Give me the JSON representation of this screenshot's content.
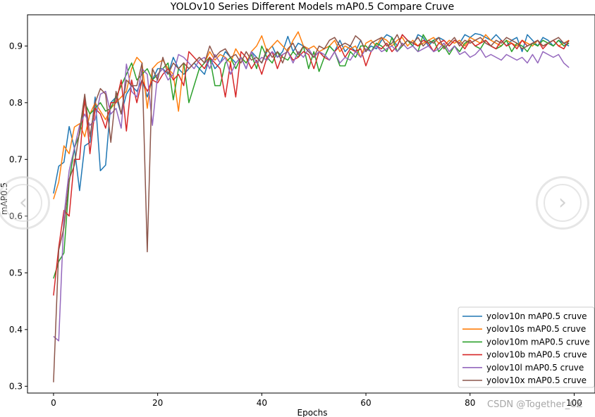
{
  "chart_data": {
    "type": "line",
    "title": "YOLOv10 Series Different Models mAP0.5 Compare Cruve",
    "xlabel": "Epochs",
    "ylabel": "mAP0.5",
    "xlim": [
      -5,
      104
    ],
    "ylim": [
      0.288,
      0.955
    ],
    "xticks": [
      0,
      20,
      40,
      60,
      80,
      100
    ],
    "yticks": [
      0.3,
      0.4,
      0.5,
      0.6,
      0.7,
      0.8,
      0.9
    ],
    "grid": false,
    "legend_position": "lower-right",
    "series": [
      {
        "name": "yolov10n mAP0.5 cruve",
        "color": "#1f77b4",
        "values": [
          0.64,
          0.688,
          0.695,
          0.758,
          0.72,
          0.645,
          0.724,
          0.73,
          0.81,
          0.68,
          0.69,
          0.8,
          0.81,
          0.78,
          0.815,
          0.83,
          0.82,
          0.84,
          0.81,
          0.84,
          0.86,
          0.86,
          0.85,
          0.88,
          0.86,
          0.85,
          0.86,
          0.87,
          0.86,
          0.85,
          0.88,
          0.86,
          0.87,
          0.89,
          0.88,
          0.87,
          0.88,
          0.86,
          0.89,
          0.88,
          0.87,
          0.89,
          0.9,
          0.88,
          0.89,
          0.917,
          0.89,
          0.905,
          0.9,
          0.89,
          0.88,
          0.89,
          0.88,
          0.9,
          0.89,
          0.91,
          0.89,
          0.9,
          0.89,
          0.91,
          0.89,
          0.9,
          0.895,
          0.91,
          0.92,
          0.915,
          0.9,
          0.92,
          0.91,
          0.9,
          0.92,
          0.915,
          0.9,
          0.91,
          0.915,
          0.91,
          0.9,
          0.91,
          0.905,
          0.92,
          0.915,
          0.922,
          0.92,
          0.915,
          0.91,
          0.92,
          0.91,
          0.9,
          0.91,
          0.915,
          0.89,
          0.92,
          0.91,
          0.9,
          0.915,
          0.91,
          0.9,
          0.91,
          0.905,
          0.9
        ]
      },
      {
        "name": "yolov10s mAP0.5 cruve",
        "color": "#ff7f0e",
        "values": [
          0.63,
          0.66,
          0.724,
          0.71,
          0.757,
          0.763,
          0.74,
          0.78,
          0.8,
          0.785,
          0.77,
          0.79,
          0.8,
          0.81,
          0.82,
          0.86,
          0.88,
          0.87,
          0.79,
          0.86,
          0.87,
          0.875,
          0.86,
          0.85,
          0.785,
          0.87,
          0.86,
          0.87,
          0.88,
          0.87,
          0.89,
          0.875,
          0.885,
          0.88,
          0.87,
          0.895,
          0.88,
          0.87,
          0.89,
          0.9,
          0.918,
          0.89,
          0.9,
          0.91,
          0.9,
          0.89,
          0.91,
          0.925,
          0.9,
          0.895,
          0.9,
          0.89,
          0.895,
          0.9,
          0.91,
          0.89,
          0.9,
          0.895,
          0.9,
          0.88,
          0.905,
          0.91,
          0.9,
          0.915,
          0.91,
          0.9,
          0.91,
          0.915,
          0.9,
          0.91,
          0.9,
          0.905,
          0.91,
          0.915,
          0.905,
          0.9,
          0.91,
          0.905,
          0.91,
          0.9,
          0.915,
          0.91,
          0.905,
          0.92,
          0.91,
          0.905,
          0.9,
          0.91,
          0.905,
          0.9,
          0.91,
          0.905,
          0.9,
          0.91,
          0.9,
          0.905,
          0.91,
          0.9,
          0.905,
          0.91
        ]
      },
      {
        "name": "yolov10m mAP0.5 cruve",
        "color": "#2ca02c",
        "values": [
          0.49,
          0.52,
          0.535,
          0.66,
          0.72,
          0.745,
          0.8,
          0.78,
          0.79,
          0.8,
          0.785,
          0.79,
          0.81,
          0.83,
          0.85,
          0.87,
          0.84,
          0.85,
          0.86,
          0.84,
          0.85,
          0.86,
          0.87,
          0.805,
          0.86,
          0.87,
          0.8,
          0.83,
          0.86,
          0.87,
          0.88,
          0.83,
          0.83,
          0.87,
          0.88,
          0.86,
          0.88,
          0.87,
          0.885,
          0.86,
          0.9,
          0.88,
          0.87,
          0.89,
          0.88,
          0.875,
          0.89,
          0.88,
          0.9,
          0.86,
          0.89,
          0.855,
          0.88,
          0.9,
          0.89,
          0.865,
          0.865,
          0.89,
          0.88,
          0.9,
          0.9,
          0.89,
          0.905,
          0.9,
          0.89,
          0.915,
          0.89,
          0.9,
          0.91,
          0.9,
          0.89,
          0.92,
          0.905,
          0.91,
          0.89,
          0.9,
          0.885,
          0.9,
          0.89,
          0.905,
          0.91,
          0.9,
          0.895,
          0.91,
          0.9,
          0.895,
          0.9,
          0.91,
          0.89,
          0.905,
          0.9,
          0.89,
          0.905,
          0.9,
          0.91,
          0.905,
          0.9,
          0.91,
          0.9,
          0.905
        ]
      },
      {
        "name": "yolov10b mAP0.5 cruve",
        "color": "#d62728",
        "values": [
          0.46,
          0.545,
          0.61,
          0.6,
          0.7,
          0.7,
          0.81,
          0.71,
          0.79,
          0.78,
          0.755,
          0.8,
          0.8,
          0.84,
          0.75,
          0.84,
          0.8,
          0.84,
          0.82,
          0.84,
          0.835,
          0.85,
          0.86,
          0.84,
          0.85,
          0.83,
          0.89,
          0.88,
          0.87,
          0.86,
          0.88,
          0.87,
          0.86,
          0.81,
          0.87,
          0.81,
          0.89,
          0.88,
          0.86,
          0.875,
          0.85,
          0.88,
          0.89,
          0.86,
          0.885,
          0.89,
          0.875,
          0.88,
          0.89,
          0.885,
          0.86,
          0.89,
          0.88,
          0.875,
          0.89,
          0.9,
          0.88,
          0.895,
          0.89,
          0.895,
          0.865,
          0.89,
          0.9,
          0.895,
          0.905,
          0.89,
          0.9,
          0.92,
          0.91,
          0.905,
          0.9,
          0.91,
          0.905,
          0.89,
          0.905,
          0.91,
          0.9,
          0.91,
          0.905,
          0.895,
          0.91,
          0.9,
          0.905,
          0.91,
          0.9,
          0.895,
          0.91,
          0.9,
          0.905,
          0.895,
          0.91,
          0.9,
          0.905,
          0.91,
          0.895,
          0.905,
          0.91,
          0.9,
          0.895,
          0.91
        ]
      },
      {
        "name": "yolov10l mAP0.5 cruve",
        "color": "#9467bd",
        "values": [
          0.388,
          0.38,
          0.6,
          0.68,
          0.72,
          0.76,
          0.78,
          0.76,
          0.77,
          0.815,
          0.82,
          0.78,
          0.79,
          0.755,
          0.868,
          0.82,
          0.81,
          0.86,
          0.85,
          0.76,
          0.85,
          0.86,
          0.84,
          0.85,
          0.885,
          0.88,
          0.87,
          0.86,
          0.875,
          0.88,
          0.86,
          0.885,
          0.87,
          0.88,
          0.85,
          0.87,
          0.88,
          0.86,
          0.89,
          0.87,
          0.88,
          0.875,
          0.89,
          0.88,
          0.885,
          0.89,
          0.87,
          0.89,
          0.88,
          0.895,
          0.88,
          0.89,
          0.885,
          0.875,
          0.89,
          0.87,
          0.88,
          0.875,
          0.89,
          0.88,
          0.895,
          0.89,
          0.9,
          0.89,
          0.895,
          0.9,
          0.89,
          0.905,
          0.895,
          0.9,
          0.89,
          0.895,
          0.9,
          0.89,
          0.895,
          0.905,
          0.89,
          0.9,
          0.885,
          0.89,
          0.88,
          0.885,
          0.895,
          0.88,
          0.885,
          0.88,
          0.875,
          0.885,
          0.88,
          0.875,
          0.88,
          0.87,
          0.885,
          0.87,
          0.89,
          0.885,
          0.88,
          0.885,
          0.87,
          0.862
        ]
      },
      {
        "name": "yolov10x mAP0.5 cruve",
        "color": "#8c564b",
        "values": [
          0.307,
          0.54,
          0.58,
          0.665,
          0.69,
          0.75,
          0.815,
          0.74,
          0.8,
          0.825,
          0.815,
          0.73,
          0.82,
          0.78,
          0.84,
          0.83,
          0.83,
          0.87,
          0.537,
          0.86,
          0.84,
          0.88,
          0.85,
          0.87,
          0.86,
          0.87,
          0.86,
          0.87,
          0.88,
          0.87,
          0.9,
          0.88,
          0.89,
          0.895,
          0.88,
          0.885,
          0.87,
          0.89,
          0.875,
          0.88,
          0.87,
          0.895,
          0.88,
          0.89,
          0.87,
          0.895,
          0.905,
          0.885,
          0.9,
          0.89,
          0.88,
          0.9,
          0.895,
          0.91,
          0.915,
          0.9,
          0.905,
          0.9,
          0.918,
          0.91,
          0.89,
          0.905,
          0.91,
          0.915,
          0.9,
          0.905,
          0.92,
          0.9,
          0.91,
          0.905,
          0.915,
          0.9,
          0.91,
          0.905,
          0.915,
          0.895,
          0.905,
          0.915,
          0.9,
          0.91,
          0.905,
          0.91,
          0.915,
          0.905,
          0.9,
          0.91,
          0.905,
          0.915,
          0.91,
          0.905,
          0.895,
          0.9,
          0.905,
          0.91,
          0.9,
          0.905,
          0.91,
          0.915,
          0.905,
          0.908
        ]
      }
    ]
  },
  "watermark": "CSDN @Together_CZ",
  "nav": {
    "prev_glyph": "‹",
    "next_glyph": "›"
  }
}
